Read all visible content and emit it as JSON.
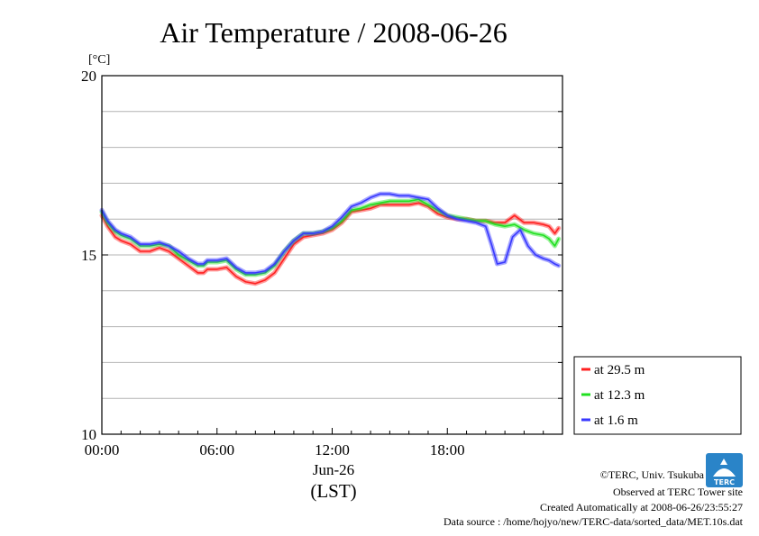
{
  "footer": {
    "copyright": "©TERC, Univ. Tsukuba",
    "observed": "Observed at TERC Tower site",
    "created": "Created Automatically at 2008-06-26/23:55:27",
    "source": "Data source : /home/hojyo/new/TERC-data/sorted_data/MET.10s.dat"
  },
  "logo": {
    "text": "TERC",
    "color": "#2a84c8"
  },
  "chart_data": {
    "type": "line",
    "title": "Air Temperature / 2008-06-26",
    "ylabel": "[°C]",
    "xlabel": "(LST)",
    "date_label": "Jun-26",
    "ylim": [
      10,
      20
    ],
    "xlim": [
      0,
      24
    ],
    "y_ticks": [
      10,
      15,
      20
    ],
    "y_tick_labels": [
      "10",
      "15",
      "20"
    ],
    "y_grid": [
      11,
      12,
      13,
      14,
      15,
      16,
      17,
      18,
      19
    ],
    "x_ticks": [
      0,
      6,
      12,
      18
    ],
    "x_tick_labels": [
      "00:00",
      "06:00",
      "12:00",
      "18:00"
    ],
    "grid": true,
    "legend_position": "right-lower",
    "series": [
      {
        "name": "at 29.5 m",
        "color": "#ff2020",
        "x": [
          0,
          0.3,
          0.7,
          1.0,
          1.5,
          2.0,
          2.5,
          3.0,
          3.5,
          4.0,
          4.5,
          5.0,
          5.3,
          5.5,
          6.0,
          6.5,
          7.0,
          7.5,
          8.0,
          8.5,
          9.0,
          9.5,
          10.0,
          10.5,
          11.0,
          11.5,
          12.0,
          12.5,
          13.0,
          13.5,
          14.0,
          14.5,
          15.0,
          15.5,
          16.0,
          16.5,
          17.0,
          17.5,
          18.0,
          18.5,
          19.0,
          19.5,
          20.0,
          20.5,
          21.0,
          21.5,
          22.0,
          22.5,
          23.0,
          23.3,
          23.6,
          23.8
        ],
        "y": [
          16.1,
          15.8,
          15.5,
          15.4,
          15.3,
          15.1,
          15.1,
          15.2,
          15.1,
          14.9,
          14.7,
          14.5,
          14.5,
          14.6,
          14.6,
          14.65,
          14.4,
          14.25,
          14.2,
          14.3,
          14.5,
          14.9,
          15.3,
          15.5,
          15.55,
          15.6,
          15.7,
          15.9,
          16.2,
          16.25,
          16.3,
          16.4,
          16.4,
          16.4,
          16.4,
          16.45,
          16.35,
          16.15,
          16.05,
          16.0,
          16.0,
          15.95,
          15.95,
          15.9,
          15.9,
          16.1,
          15.9,
          15.9,
          15.85,
          15.8,
          15.6,
          15.75
        ]
      },
      {
        "name": "at 12.3 m",
        "color": "#20e020",
        "x": [
          0,
          0.3,
          0.7,
          1.0,
          1.5,
          2.0,
          2.5,
          3.0,
          3.5,
          4.0,
          4.5,
          5.0,
          5.3,
          5.5,
          6.0,
          6.5,
          7.0,
          7.5,
          8.0,
          8.5,
          9.0,
          9.5,
          10.0,
          10.5,
          11.0,
          11.5,
          12.0,
          12.5,
          13.0,
          13.5,
          14.0,
          14.5,
          15.0,
          15.5,
          16.0,
          16.5,
          17.0,
          17.5,
          18.0,
          18.5,
          19.0,
          19.5,
          20.0,
          20.5,
          21.0,
          21.5,
          22.0,
          22.5,
          23.0,
          23.3,
          23.6,
          23.8
        ],
        "y": [
          16.2,
          15.9,
          15.65,
          15.55,
          15.45,
          15.25,
          15.25,
          15.3,
          15.25,
          15.0,
          14.85,
          14.7,
          14.7,
          14.8,
          14.8,
          14.85,
          14.6,
          14.45,
          14.45,
          14.5,
          14.7,
          15.1,
          15.4,
          15.6,
          15.6,
          15.65,
          15.75,
          15.95,
          16.25,
          16.3,
          16.4,
          16.45,
          16.5,
          16.5,
          16.5,
          16.55,
          16.4,
          16.25,
          16.1,
          16.05,
          16.0,
          15.95,
          15.95,
          15.85,
          15.8,
          15.85,
          15.7,
          15.6,
          15.55,
          15.45,
          15.25,
          15.45
        ]
      },
      {
        "name": "at 1.6 m",
        "color": "#3838ff",
        "x": [
          0,
          0.3,
          0.7,
          1.0,
          1.5,
          2.0,
          2.5,
          3.0,
          3.5,
          4.0,
          4.5,
          5.0,
          5.3,
          5.5,
          6.0,
          6.5,
          7.0,
          7.5,
          8.0,
          8.5,
          9.0,
          9.5,
          10.0,
          10.5,
          11.0,
          11.5,
          12.0,
          12.5,
          13.0,
          13.5,
          14.0,
          14.5,
          15.0,
          15.5,
          16.0,
          16.5,
          17.0,
          17.5,
          18.0,
          18.5,
          19.0,
          19.5,
          20.0,
          20.3,
          20.6,
          21.0,
          21.4,
          21.8,
          22.2,
          22.6,
          23.0,
          23.3,
          23.6,
          23.8
        ],
        "y": [
          16.25,
          15.95,
          15.7,
          15.6,
          15.5,
          15.3,
          15.3,
          15.35,
          15.25,
          15.1,
          14.9,
          14.75,
          14.75,
          14.85,
          14.85,
          14.9,
          14.65,
          14.5,
          14.5,
          14.55,
          14.75,
          15.1,
          15.4,
          15.6,
          15.6,
          15.65,
          15.8,
          16.05,
          16.35,
          16.45,
          16.6,
          16.7,
          16.7,
          16.65,
          16.65,
          16.6,
          16.55,
          16.3,
          16.1,
          16.0,
          15.95,
          15.9,
          15.8,
          15.3,
          14.75,
          14.8,
          15.5,
          15.7,
          15.25,
          15.0,
          14.9,
          14.85,
          14.75,
          14.7
        ]
      }
    ]
  }
}
